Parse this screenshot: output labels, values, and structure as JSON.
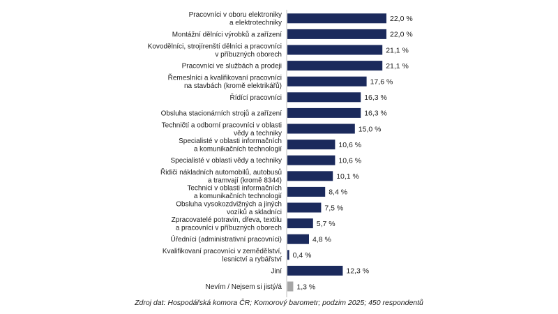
{
  "chart_data": {
    "type": "bar",
    "orientation": "horizontal",
    "categories": [
      "Pracovníci v oboru elektroniky\na elektrotechniky",
      "Montážní dělníci výrobků a zařízení",
      "Kovodělníci, strojírenští dělníci a pracovníci\nv příbuzných oborech",
      "Pracovníci ve službách a prodeji",
      "Řemeslníci a kvalifikovaní pracovníci\nna stavbách (kromě elektrikářů)",
      "Řídící pracovníci",
      "Obsluha stacionárních strojů a zařízení",
      "Techničtí a odborní pracovníci v oblasti\nvědy a techniky",
      "Specialisté v oblasti informačních\na komunikačních technologií",
      "Specialisté v oblasti vědy a techniky",
      "Řidiči nákladních automobilů, autobusů\na tramvají (kromě 8344)",
      "Technici v oblasti informačních\na komunikačních technologií",
      "Obsluha vysokozdvižných a jiných\nvozíků a skladníci",
      "Zpracovatelé potravin, dřeva, textilu\na pracovníci v příbuzných oborech",
      "Úředníci (administrativní pracovníci)",
      "Kvalifikovaní pracovníci v zemědělství,\nlesnictví a rybářství",
      "Jiní",
      "Nevím / Nejsem si jistý/á"
    ],
    "values": [
      22.0,
      22.0,
      21.1,
      21.1,
      17.6,
      16.3,
      16.3,
      15.0,
      10.6,
      10.6,
      10.1,
      8.4,
      7.5,
      5.7,
      4.8,
      0.4,
      12.3,
      1.3
    ],
    "value_labels": [
      "22,0 %",
      "22,0 %",
      "21,1 %",
      "21,1 %",
      "17,6 %",
      "16,3 %",
      "16,3 %",
      "15,0 %",
      "10,6 %",
      "10,6 %",
      "10,1 %",
      "8,4 %",
      "7,5 %",
      "5,7 %",
      "4,8 %",
      "0,4 %",
      "12,3 %",
      "1,3 %"
    ],
    "bar_colors": [
      "#1b2a5c",
      "#1b2a5c",
      "#1b2a5c",
      "#1b2a5c",
      "#1b2a5c",
      "#1b2a5c",
      "#1b2a5c",
      "#1b2a5c",
      "#1b2a5c",
      "#1b2a5c",
      "#1b2a5c",
      "#1b2a5c",
      "#1b2a5c",
      "#1b2a5c",
      "#1b2a5c",
      "#1b2a5c",
      "#1b2a5c",
      "#a6a6a6"
    ],
    "xlim": [
      0,
      22
    ],
    "grid": false,
    "legend": "none"
  },
  "source_note": "Zdroj dat: Hospodářská komora ČR; Komorový barometr; podzim 2025; 450 respondentů"
}
